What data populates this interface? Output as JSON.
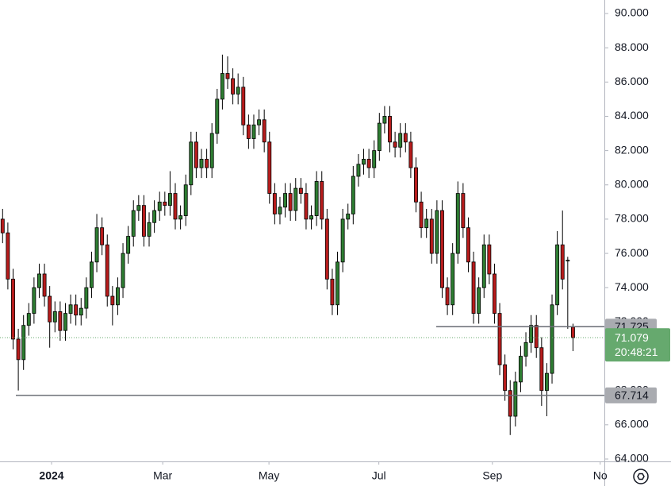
{
  "chart_data": {
    "type": "candlestick",
    "up_color": "#2e7d32",
    "down_color": "#b71c1c",
    "outline_color": "#000000",
    "open": [
      78,
      77.2,
      74.5,
      71,
      69.8,
      71.8,
      72.5,
      74,
      74.8,
      73.5,
      72,
      72.6,
      71.5,
      72.5,
      73,
      72.4,
      72.8,
      74,
      75.5,
      77.5,
      76.5,
      73.5,
      73,
      74,
      76,
      77,
      78.5,
      78.8,
      77,
      77.8,
      78.5,
      79,
      78.8,
      79.5,
      78,
      78.2,
      80,
      82.5,
      81,
      81.5,
      81,
      83,
      85,
      86.5,
      86.2,
      85.3,
      85.7,
      83.5,
      82.7,
      83.5,
      83.8,
      82.5,
      79.5,
      78.3,
      78.7,
      79.5,
      78.5,
      79.8,
      79.5,
      78,
      78.2,
      80.2,
      78,
      74.5,
      73,
      75.5,
      78,
      78.3,
      80.5,
      81.2,
      81.5,
      81,
      82,
      83.6,
      84,
      82.5,
      82.2,
      83,
      82.5,
      81,
      79,
      77.5,
      78,
      76,
      78.5,
      74,
      73,
      76,
      79.5,
      77.5,
      75.5,
      72.5,
      74,
      76.5,
      74.8,
      72.5,
      69.5,
      68,
      66.5,
      68.5,
      70,
      70.8,
      71.8,
      70.5,
      68,
      69,
      73,
      76.5,
      75.6,
      71.7
    ],
    "high": [
      78.6,
      77.8,
      75.1,
      71.6,
      72.4,
      73.1,
      74.6,
      75.4,
      75.4,
      74.1,
      73.2,
      73.2,
      73.1,
      73.6,
      73.6,
      73.4,
      74.6,
      76.1,
      78.3,
      78.1,
      77.1,
      74.1,
      74.6,
      76.6,
      77.6,
      79.1,
      79.4,
      79.4,
      78.4,
      79.1,
      79.6,
      79.6,
      80.8,
      80.1,
      78.8,
      80.6,
      83.1,
      83.1,
      82.1,
      82.1,
      83.6,
      85.6,
      87.6,
      87.5,
      86.8,
      86.5,
      86.3,
      84.1,
      84.1,
      84.4,
      84.4,
      83.1,
      80.1,
      79.3,
      80.1,
      80.1,
      80.4,
      80.4,
      80.1,
      78.8,
      80.8,
      80.8,
      78.6,
      75.1,
      76.1,
      78.6,
      78.9,
      81.1,
      81.8,
      82.1,
      82.1,
      82.6,
      84.2,
      84.6,
      84.6,
      83.1,
      83.6,
      83.6,
      83.1,
      81.6,
      79.6,
      78.6,
      78.6,
      79.1,
      79.1,
      74.6,
      76.6,
      80.2,
      80.1,
      78.1,
      76.1,
      74.6,
      77.1,
      77.1,
      75.4,
      73.1,
      70.1,
      68.6,
      69.1,
      70.6,
      71.4,
      72.4,
      72.4,
      71.1,
      69.6,
      73.6,
      77.3,
      78.5,
      75.8,
      71.9
    ],
    "low": [
      76.6,
      73.9,
      70.4,
      68,
      69.2,
      71.2,
      71.9,
      73.4,
      72.9,
      70.5,
      71.4,
      70.9,
      70.9,
      71.9,
      71.8,
      71.8,
      72.2,
      73.4,
      74.9,
      75.9,
      72.9,
      71.8,
      72.4,
      73.4,
      75.4,
      76.4,
      77.9,
      76.4,
      76.4,
      77.2,
      77.9,
      78.2,
      78.2,
      77.4,
      77.4,
      77.6,
      79.4,
      80.4,
      80.4,
      80.4,
      80.4,
      82.4,
      84.4,
      85.6,
      84.7,
      84.7,
      82.9,
      82.1,
      82.1,
      82.9,
      81.9,
      78.9,
      77.7,
      77.7,
      78.1,
      77.9,
      77.9,
      78.9,
      77.4,
      77.4,
      77.6,
      77.4,
      73.9,
      72.4,
      72.4,
      74.9,
      77.4,
      77.7,
      79.9,
      80.6,
      80.4,
      80.4,
      81.4,
      83,
      81.9,
      81.6,
      81.6,
      81.9,
      80.4,
      78.4,
      76.9,
      76.9,
      75.4,
      75.4,
      73.4,
      72.4,
      72.4,
      75.4,
      76.9,
      74.9,
      71.9,
      71.9,
      73.4,
      74.2,
      71.9,
      68.9,
      67.4,
      65.4,
      65.9,
      67.9,
      69.4,
      70.2,
      69.9,
      67.1,
      66.5,
      68.4,
      72.4,
      73.9,
      71.6,
      70.3
    ],
    "close": [
      77.2,
      74.5,
      71,
      69.8,
      71.8,
      72.5,
      74,
      74.8,
      73.5,
      72,
      72.6,
      71.5,
      72.5,
      73,
      72.4,
      72.8,
      74,
      75.5,
      77.5,
      76.5,
      73.5,
      73,
      74,
      76,
      77,
      78.5,
      78.8,
      77,
      77.8,
      78.5,
      79,
      78.8,
      79.5,
      78,
      78.2,
      80,
      82.5,
      81,
      81.5,
      81,
      83,
      85,
      86.5,
      86.2,
      85.3,
      85.7,
      83.5,
      82.7,
      83.5,
      83.8,
      82.5,
      79.5,
      78.3,
      78.7,
      79.5,
      78.5,
      79.8,
      79.5,
      78,
      78.2,
      80.2,
      78,
      74.5,
      73,
      75.5,
      78,
      78.3,
      80.5,
      81.2,
      81.5,
      81,
      82,
      83.6,
      84,
      82.5,
      82.2,
      83,
      82.5,
      81,
      79,
      77.5,
      78,
      76,
      78.5,
      74,
      73,
      76,
      79.5,
      77.5,
      75.5,
      72.5,
      74,
      76.5,
      74.8,
      72.5,
      69.5,
      68,
      66.5,
      68.5,
      70,
      70.8,
      71.8,
      70.5,
      68,
      69,
      73,
      76.5,
      74.5,
      75.6,
      71.079
    ],
    "xlim": [
      -0.5,
      115
    ],
    "xticks": [
      {
        "value": 9.35,
        "label": "2024"
      },
      {
        "value": 30.6,
        "label": "Mar"
      },
      {
        "value": 50.9,
        "label": "May"
      },
      {
        "value": 71.9,
        "label": "Jul"
      },
      {
        "value": 93.6,
        "label": "Sep"
      },
      {
        "value": 114.2,
        "label": "No"
      }
    ],
    "ylim": [
      64,
      90
    ],
    "yticks": [
      {
        "value": 64,
        "label": "64.000"
      },
      {
        "value": 66,
        "label": "66.000"
      },
      {
        "value": 68,
        "label": "68.000"
      },
      {
        "value": 70,
        "label": "70.000"
      },
      {
        "value": 72,
        "label": "72.000"
      },
      {
        "value": 74,
        "label": "74.000"
      },
      {
        "value": 76,
        "label": "76.000"
      },
      {
        "value": 78,
        "label": "78.000"
      },
      {
        "value": 80,
        "label": "80.000"
      },
      {
        "value": 82,
        "label": "82.000"
      },
      {
        "value": 84,
        "label": "84.000"
      },
      {
        "value": 86,
        "label": "86.000"
      },
      {
        "value": 88,
        "label": "88.000"
      },
      {
        "value": 90,
        "label": "90.000"
      }
    ],
    "levels": [
      {
        "value": 71.725,
        "label": "71.725"
      },
      {
        "value": 67.714,
        "label": "67.714"
      }
    ],
    "last_price": {
      "value": 71.079,
      "label": "71.079",
      "countdown": "20:48:21",
      "color": "#66a96e"
    }
  }
}
